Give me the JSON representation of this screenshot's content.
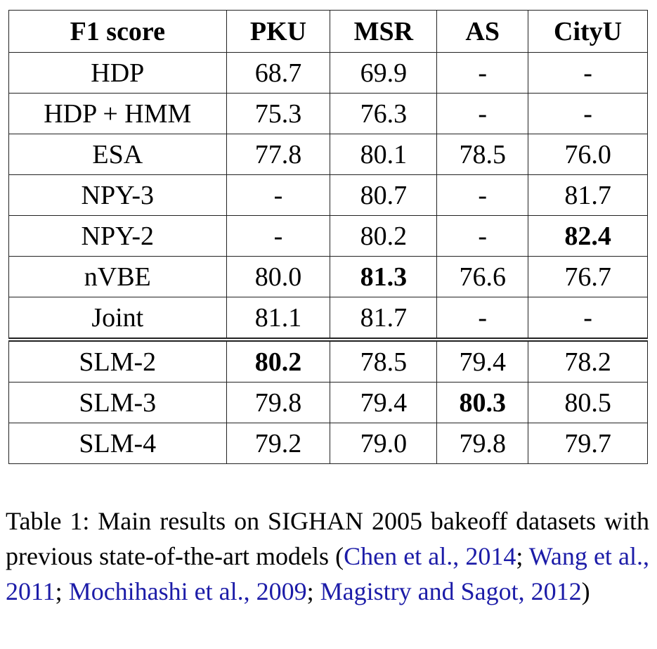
{
  "table": {
    "header": [
      "F1 score",
      "PKU",
      "MSR",
      "AS",
      "CityU"
    ],
    "rows": [
      [
        "HDP",
        "68.7",
        "69.9",
        "-",
        "-"
      ],
      [
        "HDP + HMM",
        "75.3",
        "76.3",
        "-",
        "-"
      ],
      [
        "ESA",
        "77.8",
        "80.1",
        "78.5",
        "76.0"
      ],
      [
        "NPY-3",
        "-",
        "80.7",
        "-",
        "81.7"
      ],
      [
        "NPY-2",
        "-",
        "80.2",
        "-",
        {
          "text": "82.4",
          "bold": true
        }
      ],
      [
        "nVBE",
        "80.0",
        {
          "text": "81.3",
          "bold": true
        },
        "76.6",
        "76.7"
      ],
      [
        "Joint",
        "81.1",
        "81.7",
        "-",
        "-"
      ],
      [
        "SLM-2",
        {
          "text": "80.2",
          "bold": true
        },
        "78.5",
        "79.4",
        "78.2"
      ],
      [
        "SLM-3",
        "79.8",
        "79.4",
        {
          "text": "80.3",
          "bold": true
        },
        "80.5"
      ],
      [
        "SLM-4",
        "79.2",
        "79.0",
        "79.8",
        "79.7"
      ]
    ],
    "group_break_before_row": 7
  },
  "caption": [
    {
      "text": "Table 1:  Main results on SIGHAN 2005 bakeoff datasets with previous state-of-the-art models ("
    },
    {
      "text": "Chen et al., 2014",
      "link": true
    },
    {
      "text": "; "
    },
    {
      "text": "Wang et al., 2011",
      "link": true
    },
    {
      "text": "; "
    },
    {
      "text": "Mochihashi et al., 2009",
      "link": true
    },
    {
      "text": "; "
    },
    {
      "text": "Magistry and Sagot, 2012",
      "link": true
    },
    {
      "text": ")"
    }
  ]
}
